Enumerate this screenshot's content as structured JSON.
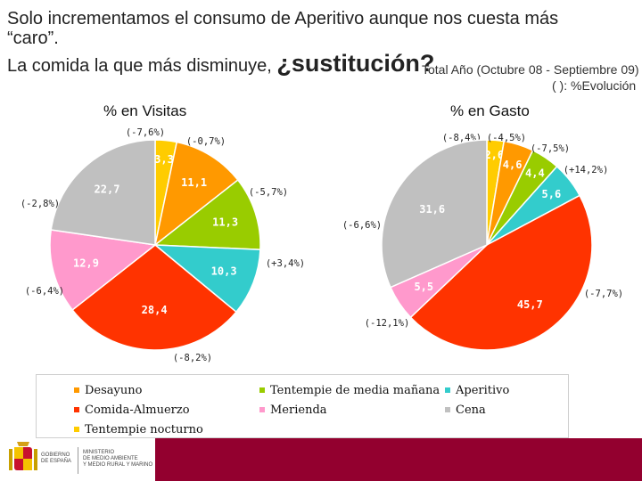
{
  "title": {
    "line1": "Solo incrementamos el consumo de Aperitivo aunque nos cuesta más",
    "line2": "“caro”.",
    "line3_prefix": "La comida la que más disminuye, ",
    "line3_emphasis": "¿sustitución?"
  },
  "period_label": "Total Año (Octubre 08 - Septiembre 09)",
  "evolution_note": "( ): %Evolución",
  "colors": {
    "desayuno": "#ff9900",
    "comida": "#ff3300",
    "tentempie_manana": "#99cc00",
    "merienda": "#ff99cc",
    "aperitivo": "#33cccc",
    "cena": "#c0c0c0",
    "tentempie_nocturno": "#ffcc00"
  },
  "chart_data": [
    {
      "type": "pie",
      "title": "% en Visitas",
      "unit": "%",
      "slices": [
        {
          "key": "tentempie_nocturno",
          "label": "3,3",
          "value": 3.3,
          "evolution": "(-7,6%)"
        },
        {
          "key": "desayuno",
          "label": "11,1",
          "value": 11.1,
          "evolution": "(-0,7%)"
        },
        {
          "key": "tentempie_manana",
          "label": "11,3",
          "value": 11.3,
          "evolution": "(-5,7%)"
        },
        {
          "key": "aperitivo",
          "label": "10,3",
          "value": 10.3,
          "evolution": "(+3,4%)"
        },
        {
          "key": "comida",
          "label": "28,4",
          "value": 28.4,
          "evolution": "(-8,2%)"
        },
        {
          "key": "merienda",
          "label": "12,9",
          "value": 12.9,
          "evolution": "(-6,4%)"
        },
        {
          "key": "cena",
          "label": "22,7",
          "value": 22.7,
          "evolution": "(-2,8%)"
        }
      ]
    },
    {
      "type": "pie",
      "title": "% en Gasto",
      "unit": "%",
      "slices": [
        {
          "key": "tentempie_nocturno",
          "label": "2,6",
          "value": 2.6,
          "evolution": "(-8,4%)"
        },
        {
          "key": "desayuno",
          "label": "4,6",
          "value": 4.6,
          "evolution": "(-4,5%)"
        },
        {
          "key": "tentempie_manana",
          "label": "4,4",
          "value": 4.4,
          "evolution": "(-7,5%)"
        },
        {
          "key": "aperitivo",
          "label": "5,6",
          "value": 5.6,
          "evolution": "(+14,2%)"
        },
        {
          "key": "comida",
          "label": "45,7",
          "value": 45.7,
          "evolution": "(-7,7%)"
        },
        {
          "key": "merienda",
          "label": "5,5",
          "value": 5.5,
          "evolution": "(-12,1%)"
        },
        {
          "key": "cena",
          "label": "31,6",
          "value": 31.6,
          "evolution": "(-6,6%)"
        }
      ]
    }
  ],
  "legend": [
    {
      "key": "desayuno",
      "label": "Desayuno"
    },
    {
      "key": "tentempie_manana",
      "label": "Tentempie de media mañana"
    },
    {
      "key": "aperitivo",
      "label": "Aperitivo"
    },
    {
      "key": "comida",
      "label": "Comida-Almuerzo"
    },
    {
      "key": "merienda",
      "label": "Merienda"
    },
    {
      "key": "cena",
      "label": "Cena"
    },
    {
      "key": "tentempie_nocturno",
      "label": "Tentempie nocturno"
    }
  ],
  "footer": {
    "logo1": [
      "GOBIERNO",
      "DE ESPAÑA"
    ],
    "logo2": [
      "MINISTERIO",
      "DE MEDIO AMBIENTE",
      "Y MEDIO RURAL Y MARINO"
    ]
  }
}
